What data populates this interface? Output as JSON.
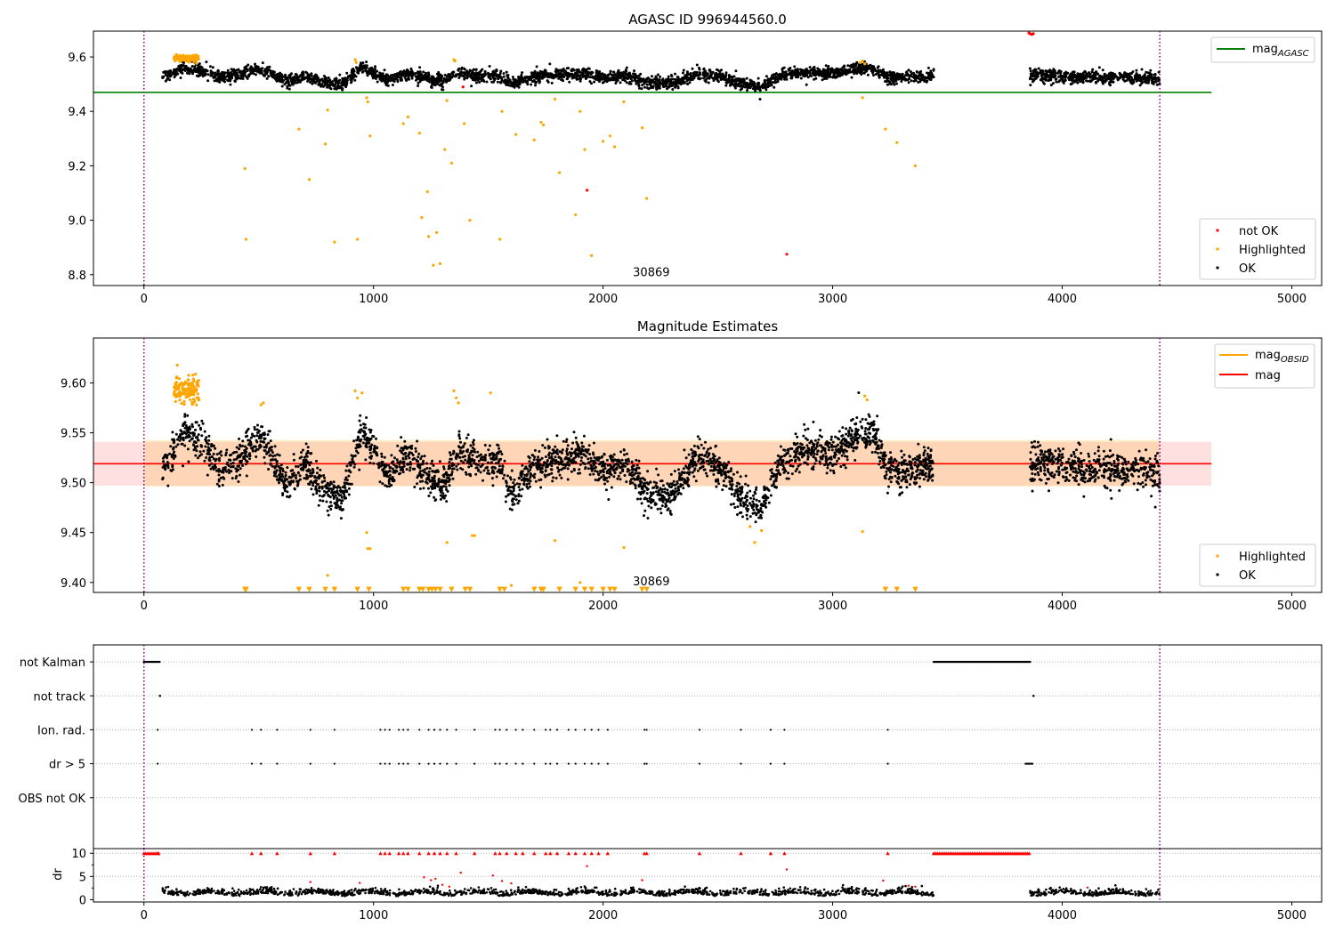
{
  "chart_data": [
    {
      "type": "scatter",
      "title": "AGASC ID 996944560.0",
      "xlim": [
        -220,
        5130
      ],
      "ylim": [
        8.76,
        9.695
      ],
      "xticks": [
        0,
        1000,
        2000,
        3000,
        4000,
        5000
      ],
      "yticks": [
        8.8,
        9.0,
        9.2,
        9.4,
        9.6
      ],
      "ytick_labels": [
        "8.8",
        "9.0",
        "9.2",
        "9.4",
        "9.6"
      ],
      "obsid_bounds": [
        0,
        4425
      ],
      "obsid_label": {
        "text": "30869",
        "x": 2130,
        "y": 8.81
      },
      "agasc_mag": 9.47,
      "agasc_span": [
        -220,
        4650
      ],
      "gap": [
        3440,
        3860
      ],
      "ok_band": {
        "mean": 9.53,
        "jitter": 0.018
      },
      "series": [
        {
          "name": "not OK",
          "color": "#ff0000",
          "points": [
            [
              1390,
              9.49
            ],
            [
              1930,
              9.11
            ],
            [
              2800,
              8.875
            ],
            [
              3855,
              9.688
            ],
            [
              3862,
              9.685
            ],
            [
              3868,
              9.683
            ],
            [
              3874,
              9.686
            ]
          ]
        },
        {
          "name": "Highlighted",
          "color": "#ffa500",
          "points": [
            [
              440,
              9.19
            ],
            [
              445,
              8.93
            ],
            [
              675,
              9.335
            ],
            [
              720,
              9.15
            ],
            [
              790,
              9.28
            ],
            [
              800,
              9.405
            ],
            [
              830,
              8.92
            ],
            [
              930,
              8.93
            ],
            [
              970,
              9.45
            ],
            [
              975,
              9.435
            ],
            [
              985,
              9.31
            ],
            [
              1130,
              9.355
            ],
            [
              1150,
              9.38
            ],
            [
              1200,
              9.32
            ],
            [
              1210,
              9.01
            ],
            [
              1235,
              9.105
            ],
            [
              1240,
              8.94
            ],
            [
              1260,
              8.835
            ],
            [
              1275,
              8.955
            ],
            [
              1290,
              8.84
            ],
            [
              1310,
              9.26
            ],
            [
              1320,
              9.44
            ],
            [
              1340,
              9.21
            ],
            [
              1395,
              9.355
            ],
            [
              1420,
              9.0
            ],
            [
              1550,
              8.93
            ],
            [
              1560,
              9.4
            ],
            [
              1620,
              9.315
            ],
            [
              1700,
              9.295
            ],
            [
              1730,
              9.36
            ],
            [
              1740,
              9.35
            ],
            [
              1790,
              9.445
            ],
            [
              1810,
              9.175
            ],
            [
              1880,
              9.02
            ],
            [
              1900,
              9.4
            ],
            [
              1920,
              9.26
            ],
            [
              1950,
              8.87
            ],
            [
              2000,
              9.29
            ],
            [
              2030,
              9.31
            ],
            [
              2050,
              9.27
            ],
            [
              2090,
              9.435
            ],
            [
              2170,
              9.34
            ],
            [
              2190,
              9.08
            ],
            [
              3130,
              9.45
            ],
            [
              3230,
              9.335
            ],
            [
              3280,
              9.285
            ],
            [
              3360,
              9.2
            ]
          ]
        },
        {
          "name": "OK",
          "color": "#000000",
          "points": []
        }
      ],
      "legend_upper": [
        {
          "label": "mag",
          "subscript": "AGASC",
          "color": "#008000"
        }
      ],
      "legend_lower": [
        {
          "label": "not OK",
          "color": "#ff0000"
        },
        {
          "label": "Highlighted",
          "color": "#ffa500"
        },
        {
          "label": "OK",
          "color": "#000000"
        }
      ]
    },
    {
      "type": "scatter",
      "title": "Magnitude Estimates",
      "xlim": [
        -220,
        5130
      ],
      "ylim": [
        9.39,
        9.645
      ],
      "xticks": [
        0,
        1000,
        2000,
        3000,
        4000,
        5000
      ],
      "yticks": [
        9.4,
        9.45,
        9.5,
        9.55,
        9.6
      ],
      "ytick_labels": [
        "9.40",
        "9.45",
        "9.50",
        "9.55",
        "9.60"
      ],
      "obsid_bounds": [
        0,
        4425
      ],
      "obsid_label": {
        "text": "30869",
        "x": 2130,
        "y": 9.4
      },
      "mag": 9.519,
      "mag_band": [
        9.497,
        9.541
      ],
      "mag_span": [
        -220,
        4650
      ],
      "mag_obsid": 9.519,
      "mag_obsid_band": [
        9.496,
        9.543
      ],
      "mag_obsid_span": [
        0,
        4425
      ],
      "highlighted_points": [
        [
          970,
          9.45
        ],
        [
          975,
          9.434
        ],
        [
          985,
          9.434
        ],
        [
          1320,
          9.44
        ],
        [
          1430,
          9.447
        ],
        [
          1440,
          9.447
        ],
        [
          1600,
          9.397
        ],
        [
          1790,
          9.442
        ],
        [
          1900,
          9.4
        ],
        [
          2090,
          9.435
        ],
        [
          2640,
          9.456
        ],
        [
          2660,
          9.44
        ],
        [
          2690,
          9.452
        ],
        [
          3130,
          9.451
        ],
        [
          800,
          9.407
        ]
      ],
      "highlighted_clipped_x": [
        440,
        445,
        675,
        720,
        790,
        830,
        930,
        980,
        1130,
        1150,
        1200,
        1215,
        1240,
        1255,
        1270,
        1290,
        1340,
        1400,
        1420,
        1550,
        1570,
        1700,
        1730,
        1740,
        1810,
        1880,
        1920,
        1950,
        2000,
        2030,
        2050,
        2170,
        2190,
        3230,
        3280,
        3360
      ],
      "legend_upper": [
        {
          "label": "mag",
          "subscript": "OBSID",
          "color": "#ffa500"
        },
        {
          "label": "mag",
          "subscript": "",
          "color": "#ff0000"
        }
      ],
      "legend_lower": [
        {
          "label": "Highlighted",
          "color": "#ffa500"
        },
        {
          "label": "OK",
          "color": "#000000"
        }
      ]
    },
    {
      "type": "scatter",
      "title": "",
      "xlim": [
        -220,
        5130
      ],
      "ylim": [
        0.5,
        6.5
      ],
      "categories": [
        "not Kalman",
        "not track",
        "Ion. rad.",
        "dr > 5",
        "OBS not OK"
      ],
      "category_y": [
        6,
        5,
        4,
        3,
        2
      ],
      "obsid_bounds": [
        0,
        4425
      ],
      "not_kalman": [
        [
          0,
          70
        ],
        [
          3440,
          3860
        ]
      ],
      "not_track": [
        70,
        3875
      ],
      "events_x": [
        60,
        470,
        510,
        580,
        725,
        830,
        1030,
        1050,
        1070,
        1110,
        1130,
        1150,
        1200,
        1240,
        1265,
        1290,
        1320,
        1360,
        1440,
        1530,
        1550,
        1580,
        1620,
        1650,
        1700,
        1750,
        1770,
        1800,
        1850,
        1880,
        1920,
        1950,
        1980,
        2020,
        2180,
        2190,
        2420,
        2600,
        2730,
        2790,
        3240
      ]
    },
    {
      "type": "scatter",
      "title": "",
      "ylabel": "dr",
      "xlim": [
        -220,
        5130
      ],
      "ylim": [
        -0.5,
        11
      ],
      "xticks": [
        0,
        1000,
        2000,
        3000,
        4000,
        5000
      ],
      "yticks": [
        0,
        5,
        10
      ],
      "ytick_labels": [
        "0",
        "5",
        "10"
      ],
      "obsid_bounds": [
        0,
        4425
      ],
      "capped_value": 10,
      "capped_runs": [
        [
          0,
          70
        ],
        [
          3440,
          3860
        ]
      ],
      "red_outliers": [
        [
          725,
          3.8
        ],
        [
          940,
          3.6
        ],
        [
          1220,
          4.8
        ],
        [
          1250,
          4.2
        ],
        [
          1270,
          4.5
        ],
        [
          1300,
          3.2
        ],
        [
          1330,
          2.8
        ],
        [
          1380,
          5.8
        ],
        [
          1520,
          5.2
        ],
        [
          1560,
          4.0
        ],
        [
          1600,
          3.5
        ],
        [
          1930,
          7.2
        ],
        [
          2170,
          4.2
        ],
        [
          2800,
          6.5
        ],
        [
          3220,
          4.1
        ],
        [
          3330,
          3.0
        ],
        [
          3360,
          2.8
        ],
        [
          4110,
          2.6
        ]
      ]
    }
  ]
}
